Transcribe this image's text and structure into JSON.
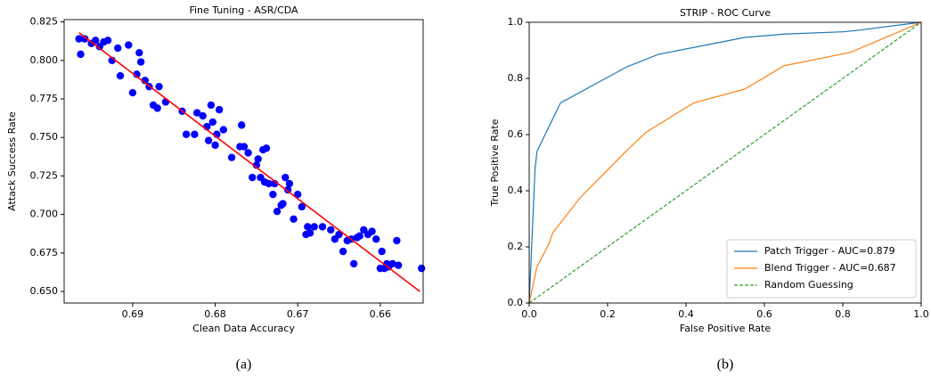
{
  "chart_data": [
    {
      "type": "scatter",
      "title": "Fine Tuning - ASR/CDA",
      "xlabel": "Clean Data Accuracy",
      "ylabel": "Attack Success Rate",
      "caption": "(a)",
      "color": "#0000ff",
      "x": [
        0.6965,
        0.6963,
        0.6958,
        0.695,
        0.6945,
        0.694,
        0.6935,
        0.693,
        0.6925,
        0.6918,
        0.6915,
        0.6905,
        0.69,
        0.6895,
        0.6892,
        0.689,
        0.6885,
        0.688,
        0.6875,
        0.687,
        0.6868,
        0.686,
        0.684,
        0.6835,
        0.6825,
        0.6822,
        0.6815,
        0.681,
        0.6808,
        0.6805,
        0.6803,
        0.68,
        0.6798,
        0.6795,
        0.679,
        0.678,
        0.677,
        0.6768,
        0.6765,
        0.676,
        0.6755,
        0.675,
        0.6748,
        0.6745,
        0.6742,
        0.674,
        0.6738,
        0.6735,
        0.673,
        0.6728,
        0.6725,
        0.672,
        0.6718,
        0.6715,
        0.6712,
        0.671,
        0.6705,
        0.67,
        0.6695,
        0.669,
        0.6688,
        0.6685,
        0.668,
        0.667,
        0.666,
        0.6655,
        0.665,
        0.6645,
        0.664,
        0.6635,
        0.6632,
        0.6628,
        0.6625,
        0.662,
        0.6615,
        0.661,
        0.6605,
        0.66,
        0.6598,
        0.6595,
        0.6592,
        0.659,
        0.6585,
        0.658,
        0.6578,
        0.655
      ],
      "y": [
        0.814,
        0.804,
        0.814,
        0.811,
        0.813,
        0.809,
        0.812,
        0.813,
        0.8,
        0.808,
        0.79,
        0.81,
        0.779,
        0.791,
        0.805,
        0.799,
        0.787,
        0.783,
        0.771,
        0.769,
        0.783,
        0.773,
        0.767,
        0.752,
        0.752,
        0.766,
        0.764,
        0.757,
        0.748,
        0.771,
        0.76,
        0.745,
        0.752,
        0.768,
        0.755,
        0.737,
        0.744,
        0.758,
        0.744,
        0.74,
        0.724,
        0.732,
        0.736,
        0.724,
        0.742,
        0.721,
        0.743,
        0.72,
        0.713,
        0.72,
        0.702,
        0.706,
        0.707,
        0.724,
        0.716,
        0.72,
        0.697,
        0.713,
        0.705,
        0.687,
        0.692,
        0.688,
        0.692,
        0.692,
        0.69,
        0.684,
        0.687,
        0.676,
        0.683,
        0.684,
        0.668,
        0.685,
        0.686,
        0.69,
        0.687,
        0.689,
        0.684,
        0.665,
        0.676,
        0.665,
        0.668,
        0.666,
        0.668,
        0.683,
        0.667,
        0.665
      ],
      "fit_line": {
        "x": [
          0.6965,
          0.6552
        ],
        "y": [
          0.818,
          0.65
        ],
        "color": "#ff0000"
      },
      "xlim": [
        0.6983,
        0.6548
      ],
      "xticks": [
        0.69,
        0.68,
        0.67,
        0.66
      ],
      "ylim": [
        0.6425,
        0.8265
      ],
      "yticks": [
        {
          "value": 0.65,
          "label": "0.650"
        },
        0.675,
        {
          "value": 0.7,
          "label": "0.700"
        },
        0.725,
        {
          "value": 0.75,
          "label": "0.750"
        },
        0.775,
        {
          "value": 0.8,
          "label": "0.800"
        },
        0.825
      ]
    },
    {
      "type": "line",
      "title": "STRIP - ROC Curve",
      "xlabel": "False Positive Rate",
      "ylabel": "True Positive Rate",
      "caption": "(b)",
      "legend": "lower right",
      "series": [
        {
          "name": "Patch Trigger - AUC=0.879",
          "color": "#1f77b4",
          "dash": false,
          "x": [
            0,
            0.015,
            0.02,
            0.03,
            0.08,
            0.25,
            0.33,
            0.55,
            0.65,
            0.8,
            0.83,
            1
          ],
          "y": [
            0,
            0.48,
            0.54,
            0.57,
            0.713,
            0.842,
            0.886,
            0.946,
            0.958,
            0.966,
            0.97,
            1
          ]
        },
        {
          "name": "Blend Trigger - AUC=0.687",
          "color": "#ff7f0e",
          "dash": false,
          "x": [
            0,
            0.02,
            0.05,
            0.06,
            0.13,
            0.25,
            0.3,
            0.42,
            0.55,
            0.65,
            0.82,
            1
          ],
          "y": [
            0,
            0.13,
            0.21,
            0.25,
            0.375,
            0.545,
            0.61,
            0.713,
            0.762,
            0.845,
            0.893,
            1
          ]
        },
        {
          "name": "Random Guessing",
          "color": "#2ca02c",
          "dash": true,
          "x": [
            0,
            1
          ],
          "y": [
            0,
            1
          ]
        }
      ],
      "xlim": [
        0,
        1
      ],
      "xticks": [
        {
          "value": 0,
          "label": "0.0"
        },
        0.2,
        0.4,
        0.6,
        0.8,
        {
          "value": 1,
          "label": "1.0"
        }
      ],
      "ylim": [
        0,
        1
      ],
      "yticks": [
        {
          "value": 0,
          "label": "0.0"
        },
        0.2,
        0.4,
        0.6,
        0.8,
        {
          "value": 1,
          "label": "1.0"
        }
      ]
    }
  ]
}
